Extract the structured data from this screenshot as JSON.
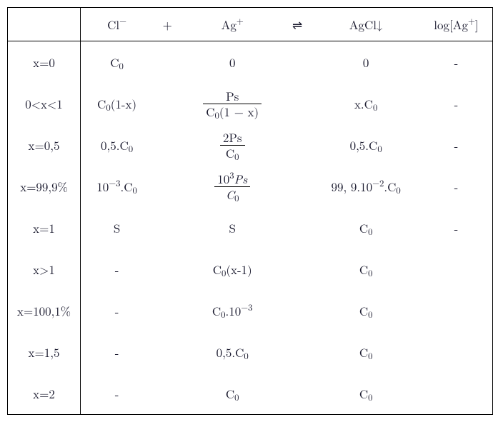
{
  "table": {
    "border_color": "#000000",
    "text_color": "#1a1a2e",
    "background_color": "#ffffff",
    "fontsize": 17,
    "header": {
      "c1": "",
      "c2": "Cl<sup>&minus;</sup>",
      "c3": "+",
      "c4": "Ag<sup>+</sup>",
      "c5": "&#8652;",
      "c6": "AgCl&#8595;",
      "c7": "log[Ag<sup>+</sup>]"
    },
    "rows": [
      {
        "c1": "x=0",
        "c2": "C<sub>0</sub>",
        "c4": "0",
        "c6": "0",
        "c7": "-"
      },
      {
        "c1": "0&lt;x&lt;1",
        "c2": "C<sub>0</sub>(1-x)",
        "c4": {
          "frac": {
            "num": "Ps",
            "den": "C<sub>0</sub>(1 &minus; x)"
          }
        },
        "c6": "x.C<sub>0</sub>",
        "c7": "-"
      },
      {
        "c1": "x=0,5",
        "c2": "0,5.C<sub>0</sub>",
        "c4": {
          "frac": {
            "num": "2Ps",
            "den": "C<sub>0</sub>"
          }
        },
        "c6": "0,5.C<sub>0</sub>",
        "c7": "-"
      },
      {
        "c1": "x=99,9%",
        "c2": "10<sup>&minus;3</sup>.C<sub>0</sub>",
        "c4": {
          "frac": {
            "num": "10<sup>3</sup><span class=\"it\">Ps</span>",
            "den": "<span class=\"it\">C</span><sub>0</sub>"
          }
        },
        "c6": "99, 9.10<sup>&minus;2</sup>.C<sub>0</sub>",
        "c7": "-"
      },
      {
        "c1": "x=1",
        "c2": "S",
        "c4": "S",
        "c6": "C<sub>0</sub>",
        "c7": "-"
      },
      {
        "c1": "x&gt;1",
        "c2": "-",
        "c4": "C<sub>0</sub>(x-1)",
        "c6": "C<sub>0</sub>",
        "c7": ""
      },
      {
        "c1": "x=100,1%",
        "c2": "-",
        "c4": "C<sub>0</sub>.10<sup>&minus;3</sup>",
        "c6": "C<sub>0</sub>",
        "c7": ""
      },
      {
        "c1": "x=1,5",
        "c2": "-",
        "c4": "0,5.C<sub>0</sub>",
        "c6": "C<sub>0</sub>",
        "c7": ""
      },
      {
        "c1": "x=2",
        "c2": "-",
        "c4": "C<sub>0</sub>",
        "c6": "C<sub>0</sub>",
        "c7": ""
      }
    ]
  }
}
